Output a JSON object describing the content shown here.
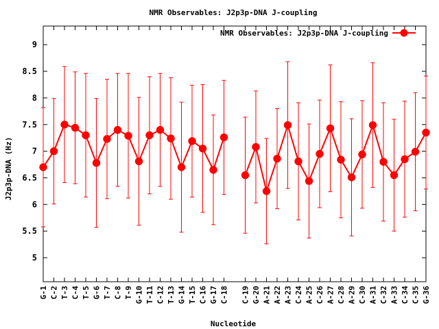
{
  "chart_data": {
    "type": "line",
    "title": "NMR Observables: J2p3p-DNA J-coupling",
    "xlabel": "Nucleotide",
    "ylabel": "J2p3p-DNA (Hz)",
    "ylim": [
      4.55,
      9.35
    ],
    "yticks": [
      "5",
      "5.5",
      "6",
      "6.5",
      "7",
      "7.5",
      "8",
      "8.5",
      "9"
    ],
    "legend": {
      "label": "NMR Observables: J2p3p-DNA J-coupling",
      "placement": "top-right"
    },
    "color": "#ff0000",
    "x_max": 36,
    "series": [
      {
        "name": "NMR Observables: J2p3p-DNA J-coupling",
        "segments": [
          {
            "points": [
              {
                "x": 0,
                "label": "G-1",
                "y": 6.7,
                "err": 1.12
              },
              {
                "x": 1,
                "label": "C-2",
                "y": 7.0,
                "err": 0.99
              },
              {
                "x": 2,
                "label": "T-3",
                "y": 7.5,
                "err": 1.09
              },
              {
                "x": 3,
                "label": "C-4",
                "y": 7.44,
                "err": 1.05
              },
              {
                "x": 4,
                "label": "T-5",
                "y": 7.3,
                "err": 1.16
              },
              {
                "x": 5,
                "label": "G-6",
                "y": 6.78,
                "err": 1.21
              },
              {
                "x": 6,
                "label": "T-7",
                "y": 7.23,
                "err": 1.12
              },
              {
                "x": 7,
                "label": "C-8",
                "y": 7.4,
                "err": 1.06
              },
              {
                "x": 8,
                "label": "T-9",
                "y": 7.29,
                "err": 1.17
              },
              {
                "x": 9,
                "label": "G-10",
                "y": 6.81,
                "err": 1.2
              },
              {
                "x": 10,
                "label": "T-11",
                "y": 7.3,
                "err": 1.1
              },
              {
                "x": 11,
                "label": "C-12",
                "y": 7.4,
                "err": 1.06
              },
              {
                "x": 12,
                "label": "T-13",
                "y": 7.24,
                "err": 1.14
              },
              {
                "x": 13,
                "label": "G-14",
                "y": 6.7,
                "err": 1.22
              },
              {
                "x": 14,
                "label": "T-15",
                "y": 7.19,
                "err": 1.05
              },
              {
                "x": 15,
                "label": "C-16",
                "y": 7.05,
                "err": 1.2
              },
              {
                "x": 16,
                "label": "G-17",
                "y": 6.65,
                "err": 1.03
              },
              {
                "x": 17,
                "label": "C-18",
                "y": 7.26,
                "err": 1.07
              }
            ]
          },
          {
            "points": [
              {
                "x": 19,
                "label": "C-19",
                "y": 6.55,
                "err": 1.09
              },
              {
                "x": 20,
                "label": "G-20",
                "y": 7.08,
                "err": 1.05
              },
              {
                "x": 21,
                "label": "A-21",
                "y": 6.25,
                "err": 0.99
              },
              {
                "x": 22,
                "label": "A-22",
                "y": 6.86,
                "err": 0.94
              },
              {
                "x": 23,
                "label": "A-23",
                "y": 7.49,
                "err": 1.19
              },
              {
                "x": 24,
                "label": "C-24",
                "y": 6.81,
                "err": 1.1
              },
              {
                "x": 25,
                "label": "A-25",
                "y": 6.44,
                "err": 1.07
              },
              {
                "x": 26,
                "label": "C-26",
                "y": 6.95,
                "err": 1.01
              },
              {
                "x": 27,
                "label": "A-27",
                "y": 7.43,
                "err": 1.19
              },
              {
                "x": 28,
                "label": "C-28",
                "y": 6.84,
                "err": 1.09
              },
              {
                "x": 29,
                "label": "A-29",
                "y": 6.51,
                "err": 1.1
              },
              {
                "x": 30,
                "label": "C-30",
                "y": 6.94,
                "err": 1.01
              },
              {
                "x": 31,
                "label": "A-31",
                "y": 7.49,
                "err": 1.17
              },
              {
                "x": 32,
                "label": "C-32",
                "y": 6.8,
                "err": 1.11
              },
              {
                "x": 33,
                "label": "A-33",
                "y": 6.55,
                "err": 1.05
              },
              {
                "x": 34,
                "label": "C-34",
                "y": 6.85,
                "err": 1.09
              },
              {
                "x": 35,
                "label": "C-35",
                "y": 6.99,
                "err": 1.11
              },
              {
                "x": 36,
                "label": "G-36",
                "y": 7.35,
                "err": 1.06
              }
            ]
          }
        ]
      }
    ]
  }
}
